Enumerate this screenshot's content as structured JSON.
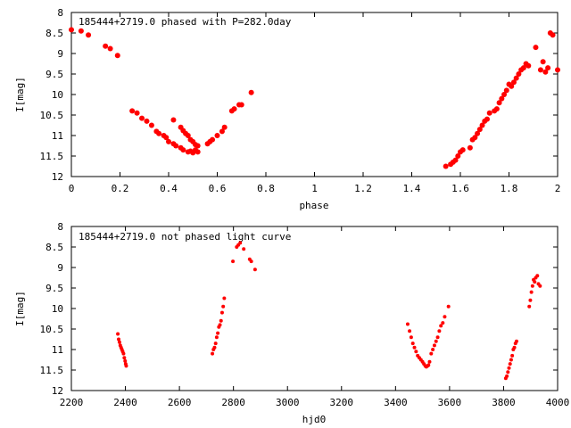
{
  "chart_data": [
    {
      "type": "scatter",
      "title": "185444+2719.0 phased with P=282.0day",
      "xlabel": "phase",
      "ylabel": "I[mag]",
      "xlim": [
        0,
        2
      ],
      "ylim": [
        8,
        12
      ],
      "y_inverted": true,
      "xticks": [
        "0",
        "0.2",
        "0.4",
        "0.6",
        "0.8",
        "1",
        "1.2",
        "1.4",
        "1.6",
        "1.8",
        "2"
      ],
      "yticks": [
        "8",
        "8.5",
        "9",
        "9.5",
        "10",
        "10.5",
        "11",
        "11.5",
        "12"
      ],
      "marker_color": "#ff0000",
      "points": [
        [
          0.0,
          8.42
        ],
        [
          0.04,
          8.45
        ],
        [
          0.07,
          8.55
        ],
        [
          0.14,
          8.82
        ],
        [
          0.16,
          8.88
        ],
        [
          0.19,
          9.05
        ],
        [
          0.25,
          10.4
        ],
        [
          0.27,
          10.45
        ],
        [
          0.29,
          10.58
        ],
        [
          0.31,
          10.65
        ],
        [
          0.33,
          10.75
        ],
        [
          0.35,
          10.9
        ],
        [
          0.36,
          10.95
        ],
        [
          0.38,
          11.0
        ],
        [
          0.39,
          11.05
        ],
        [
          0.4,
          11.15
        ],
        [
          0.42,
          11.2
        ],
        [
          0.43,
          11.25
        ],
        [
          0.45,
          11.3
        ],
        [
          0.46,
          11.35
        ],
        [
          0.48,
          11.4
        ],
        [
          0.49,
          11.38
        ],
        [
          0.5,
          11.42
        ],
        [
          0.51,
          11.35
        ],
        [
          0.52,
          11.4
        ],
        [
          0.42,
          10.62
        ],
        [
          0.45,
          10.8
        ],
        [
          0.46,
          10.88
        ],
        [
          0.47,
          10.95
        ],
        [
          0.48,
          11.0
        ],
        [
          0.49,
          11.1
        ],
        [
          0.5,
          11.15
        ],
        [
          0.51,
          11.22
        ],
        [
          0.52,
          11.25
        ],
        [
          0.56,
          11.2
        ],
        [
          0.57,
          11.15
        ],
        [
          0.58,
          11.1
        ],
        [
          0.6,
          11.0
        ],
        [
          0.62,
          10.9
        ],
        [
          0.63,
          10.8
        ],
        [
          0.66,
          10.4
        ],
        [
          0.67,
          10.35
        ],
        [
          0.69,
          10.25
        ],
        [
          0.7,
          10.25
        ],
        [
          0.74,
          9.95
        ],
        [
          1.54,
          11.75
        ],
        [
          1.56,
          11.7
        ],
        [
          1.57,
          11.65
        ],
        [
          1.58,
          11.6
        ],
        [
          1.59,
          11.5
        ],
        [
          1.6,
          11.4
        ],
        [
          1.61,
          11.35
        ],
        [
          1.64,
          11.3
        ],
        [
          1.65,
          11.1
        ],
        [
          1.66,
          11.05
        ],
        [
          1.67,
          10.95
        ],
        [
          1.68,
          10.85
        ],
        [
          1.69,
          10.75
        ],
        [
          1.7,
          10.65
        ],
        [
          1.71,
          10.6
        ],
        [
          1.72,
          10.45
        ],
        [
          1.74,
          10.4
        ],
        [
          1.75,
          10.35
        ],
        [
          1.76,
          10.2
        ],
        [
          1.77,
          10.1
        ],
        [
          1.78,
          10.0
        ],
        [
          1.79,
          9.9
        ],
        [
          1.8,
          9.75
        ],
        [
          1.81,
          9.8
        ],
        [
          1.82,
          9.7
        ],
        [
          1.83,
          9.6
        ],
        [
          1.84,
          9.5
        ],
        [
          1.85,
          9.4
        ],
        [
          1.86,
          9.35
        ],
        [
          1.87,
          9.25
        ],
        [
          1.88,
          9.3
        ],
        [
          1.91,
          8.85
        ],
        [
          1.93,
          9.4
        ],
        [
          1.94,
          9.2
        ],
        [
          1.95,
          9.45
        ],
        [
          1.96,
          9.35
        ],
        [
          1.97,
          8.5
        ],
        [
          1.98,
          8.55
        ],
        [
          2.0,
          9.4
        ]
      ]
    },
    {
      "type": "scatter",
      "title": "185444+2719.0 not phased light curve",
      "xlabel": "hjd0",
      "ylabel": "I[mag]",
      "xlim": [
        2200,
        4000
      ],
      "ylim": [
        8,
        12
      ],
      "y_inverted": true,
      "xticks": [
        "2200",
        "2400",
        "2600",
        "2800",
        "3000",
        "3200",
        "3400",
        "3600",
        "3800",
        "4000"
      ],
      "yticks": [
        "8",
        "8.5",
        "9",
        "9.5",
        "10",
        "10.5",
        "11",
        "11.5",
        "12"
      ],
      "marker_color": "#ff0000",
      "points": [
        [
          2372,
          10.62
        ],
        [
          2375,
          10.75
        ],
        [
          2378,
          10.82
        ],
        [
          2381,
          10.9
        ],
        [
          2384,
          10.95
        ],
        [
          2387,
          11.0
        ],
        [
          2390,
          11.05
        ],
        [
          2393,
          11.1
        ],
        [
          2396,
          11.2
        ],
        [
          2399,
          11.28
        ],
        [
          2401,
          11.35
        ],
        [
          2403,
          11.4
        ],
        [
          2722,
          11.1
        ],
        [
          2726,
          11.0
        ],
        [
          2730,
          10.95
        ],
        [
          2734,
          10.85
        ],
        [
          2738,
          10.7
        ],
        [
          2742,
          10.6
        ],
        [
          2746,
          10.45
        ],
        [
          2750,
          10.4
        ],
        [
          2754,
          10.3
        ],
        [
          2758,
          10.1
        ],
        [
          2762,
          9.95
        ],
        [
          2766,
          9.75
        ],
        [
          2798,
          8.85
        ],
        [
          2812,
          8.5
        ],
        [
          2818,
          8.45
        ],
        [
          2825,
          8.4
        ],
        [
          2838,
          8.55
        ],
        [
          2860,
          8.8
        ],
        [
          2866,
          8.85
        ],
        [
          2880,
          9.05
        ],
        [
          3445,
          10.38
        ],
        [
          3452,
          10.55
        ],
        [
          3458,
          10.7
        ],
        [
          3464,
          10.85
        ],
        [
          3470,
          10.95
        ],
        [
          3476,
          11.05
        ],
        [
          3482,
          11.15
        ],
        [
          3488,
          11.2
        ],
        [
          3494,
          11.25
        ],
        [
          3500,
          11.3
        ],
        [
          3505,
          11.35
        ],
        [
          3510,
          11.4
        ],
        [
          3514,
          11.42
        ],
        [
          3518,
          11.4
        ],
        [
          3522,
          11.38
        ],
        [
          3526,
          11.3
        ],
        [
          3532,
          11.1
        ],
        [
          3538,
          11.0
        ],
        [
          3544,
          10.9
        ],
        [
          3550,
          10.8
        ],
        [
          3556,
          10.7
        ],
        [
          3562,
          10.55
        ],
        [
          3568,
          10.42
        ],
        [
          3575,
          10.35
        ],
        [
          3582,
          10.2
        ],
        [
          3596,
          9.95
        ],
        [
          3808,
          11.7
        ],
        [
          3812,
          11.65
        ],
        [
          3816,
          11.55
        ],
        [
          3820,
          11.45
        ],
        [
          3824,
          11.35
        ],
        [
          3828,
          11.25
        ],
        [
          3832,
          11.15
        ],
        [
          3836,
          11.0
        ],
        [
          3840,
          10.95
        ],
        [
          3844,
          10.85
        ],
        [
          3848,
          10.8
        ],
        [
          3895,
          9.95
        ],
        [
          3899,
          9.8
        ],
        [
          3903,
          9.6
        ],
        [
          3907,
          9.45
        ],
        [
          3911,
          9.3
        ],
        [
          3915,
          9.35
        ],
        [
          3919,
          9.25
        ],
        [
          3925,
          9.2
        ],
        [
          3929,
          9.4
        ],
        [
          3935,
          9.45
        ]
      ]
    }
  ]
}
